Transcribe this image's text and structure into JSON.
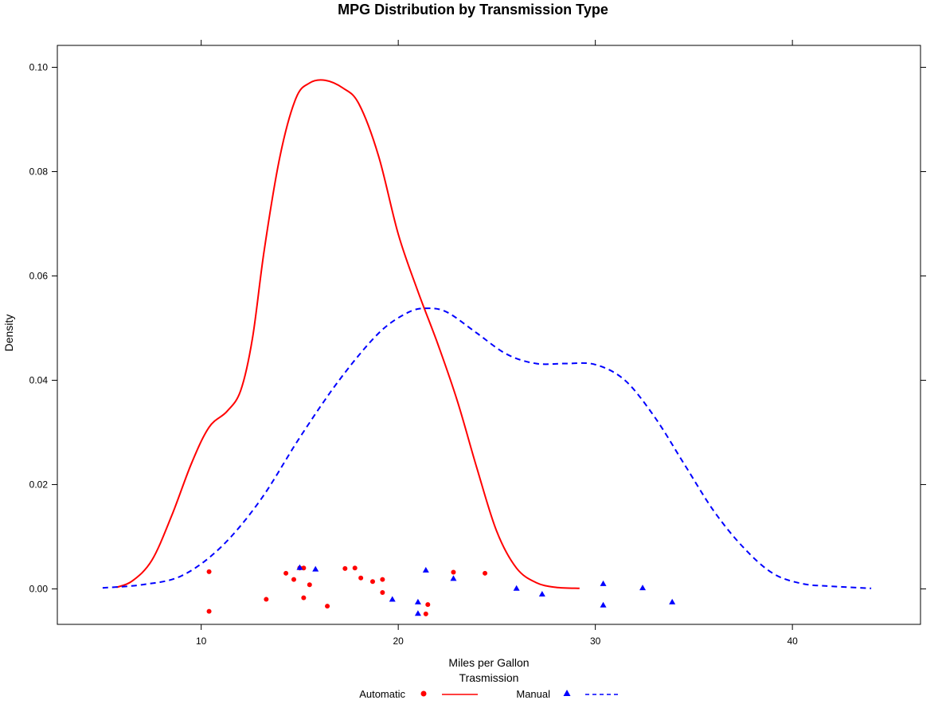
{
  "chart_data": {
    "type": "line",
    "title": "MPG Distribution by Transmission Type",
    "xlabel": "Miles per Gallon",
    "ylabel": "Density",
    "legend_title": "Trasmission",
    "legend_position": "bottom",
    "xlim": [
      2.7,
      46.5
    ],
    "ylim": [
      -0.0068,
      0.1042
    ],
    "x_ticks": [
      10,
      20,
      30,
      40
    ],
    "y_ticks": [
      0.0,
      0.02,
      0.04,
      0.06,
      0.08,
      0.1
    ],
    "x_tick_labels": [
      "10",
      "20",
      "30",
      "40"
    ],
    "y_tick_labels": [
      "0.00",
      "0.02",
      "0.04",
      "0.06",
      "0.08",
      "0.10"
    ],
    "grid": false,
    "series": [
      {
        "name": "Automatic",
        "color": "#ff0000",
        "line_style": "solid",
        "marker": "circle",
        "density": {
          "x": [
            5.7,
            6.5,
            7.5,
            8.5,
            9.5,
            10.4,
            11.3,
            12.0,
            12.6,
            13.2,
            14.0,
            14.8,
            15.5,
            16.3,
            17.2,
            18.0,
            19.0,
            20.0,
            21.0,
            22.0,
            23.0,
            24.0,
            25.0,
            26.0,
            27.0,
            28.0,
            29.2
          ],
          "y": [
            0.0003,
            0.0015,
            0.0055,
            0.014,
            0.024,
            0.031,
            0.034,
            0.038,
            0.048,
            0.065,
            0.083,
            0.094,
            0.097,
            0.0975,
            0.096,
            0.093,
            0.083,
            0.068,
            0.057,
            0.047,
            0.036,
            0.023,
            0.011,
            0.004,
            0.0012,
            0.0003,
            0.0001
          ]
        },
        "points": {
          "x": [
            10.4,
            10.4,
            13.3,
            14.3,
            14.7,
            15.0,
            15.2,
            15.2,
            15.5,
            16.4,
            17.3,
            17.8,
            18.1,
            18.7,
            19.2,
            19.2,
            21.4,
            21.5,
            22.8,
            24.4
          ],
          "y": [
            0.0033,
            -0.0043,
            -0.002,
            0.003,
            0.0018,
            0.004,
            0.004,
            -0.0017,
            0.0008,
            -0.0033,
            0.0039,
            0.004,
            0.0021,
            0.0014,
            0.0018,
            -0.0007,
            -0.0048,
            -0.003,
            0.0032,
            0.003
          ]
        }
      },
      {
        "name": "Manual",
        "color": "#0000ff",
        "line_style": "dashed",
        "marker": "triangle",
        "density": {
          "x": [
            5.0,
            7.0,
            9.0,
            11.0,
            13.0,
            15.0,
            17.0,
            19.0,
            20.5,
            21.5,
            22.5,
            24.0,
            25.5,
            27.0,
            28.5,
            30.0,
            31.5,
            33.0,
            34.5,
            36.0,
            37.5,
            39.0,
            40.5,
            42.0,
            44.0
          ],
          "y": [
            0.0002,
            0.0008,
            0.0025,
            0.008,
            0.017,
            0.029,
            0.04,
            0.049,
            0.053,
            0.0538,
            0.053,
            0.049,
            0.045,
            0.0432,
            0.0432,
            0.043,
            0.04,
            0.033,
            0.024,
            0.015,
            0.008,
            0.003,
            0.001,
            0.0005,
            0.0001
          ]
        },
        "points": {
          "x": [
            15.0,
            15.8,
            19.7,
            21.0,
            21.0,
            21.4,
            22.8,
            26.0,
            27.3,
            30.4,
            30.4,
            32.4,
            33.9
          ],
          "y": [
            0.0041,
            0.0038,
            -0.002,
            -0.0025,
            -0.0047,
            0.0036,
            0.002,
            0.0001,
            -0.001,
            0.001,
            -0.0031,
            0.0002,
            -0.0025
          ]
        }
      }
    ]
  }
}
